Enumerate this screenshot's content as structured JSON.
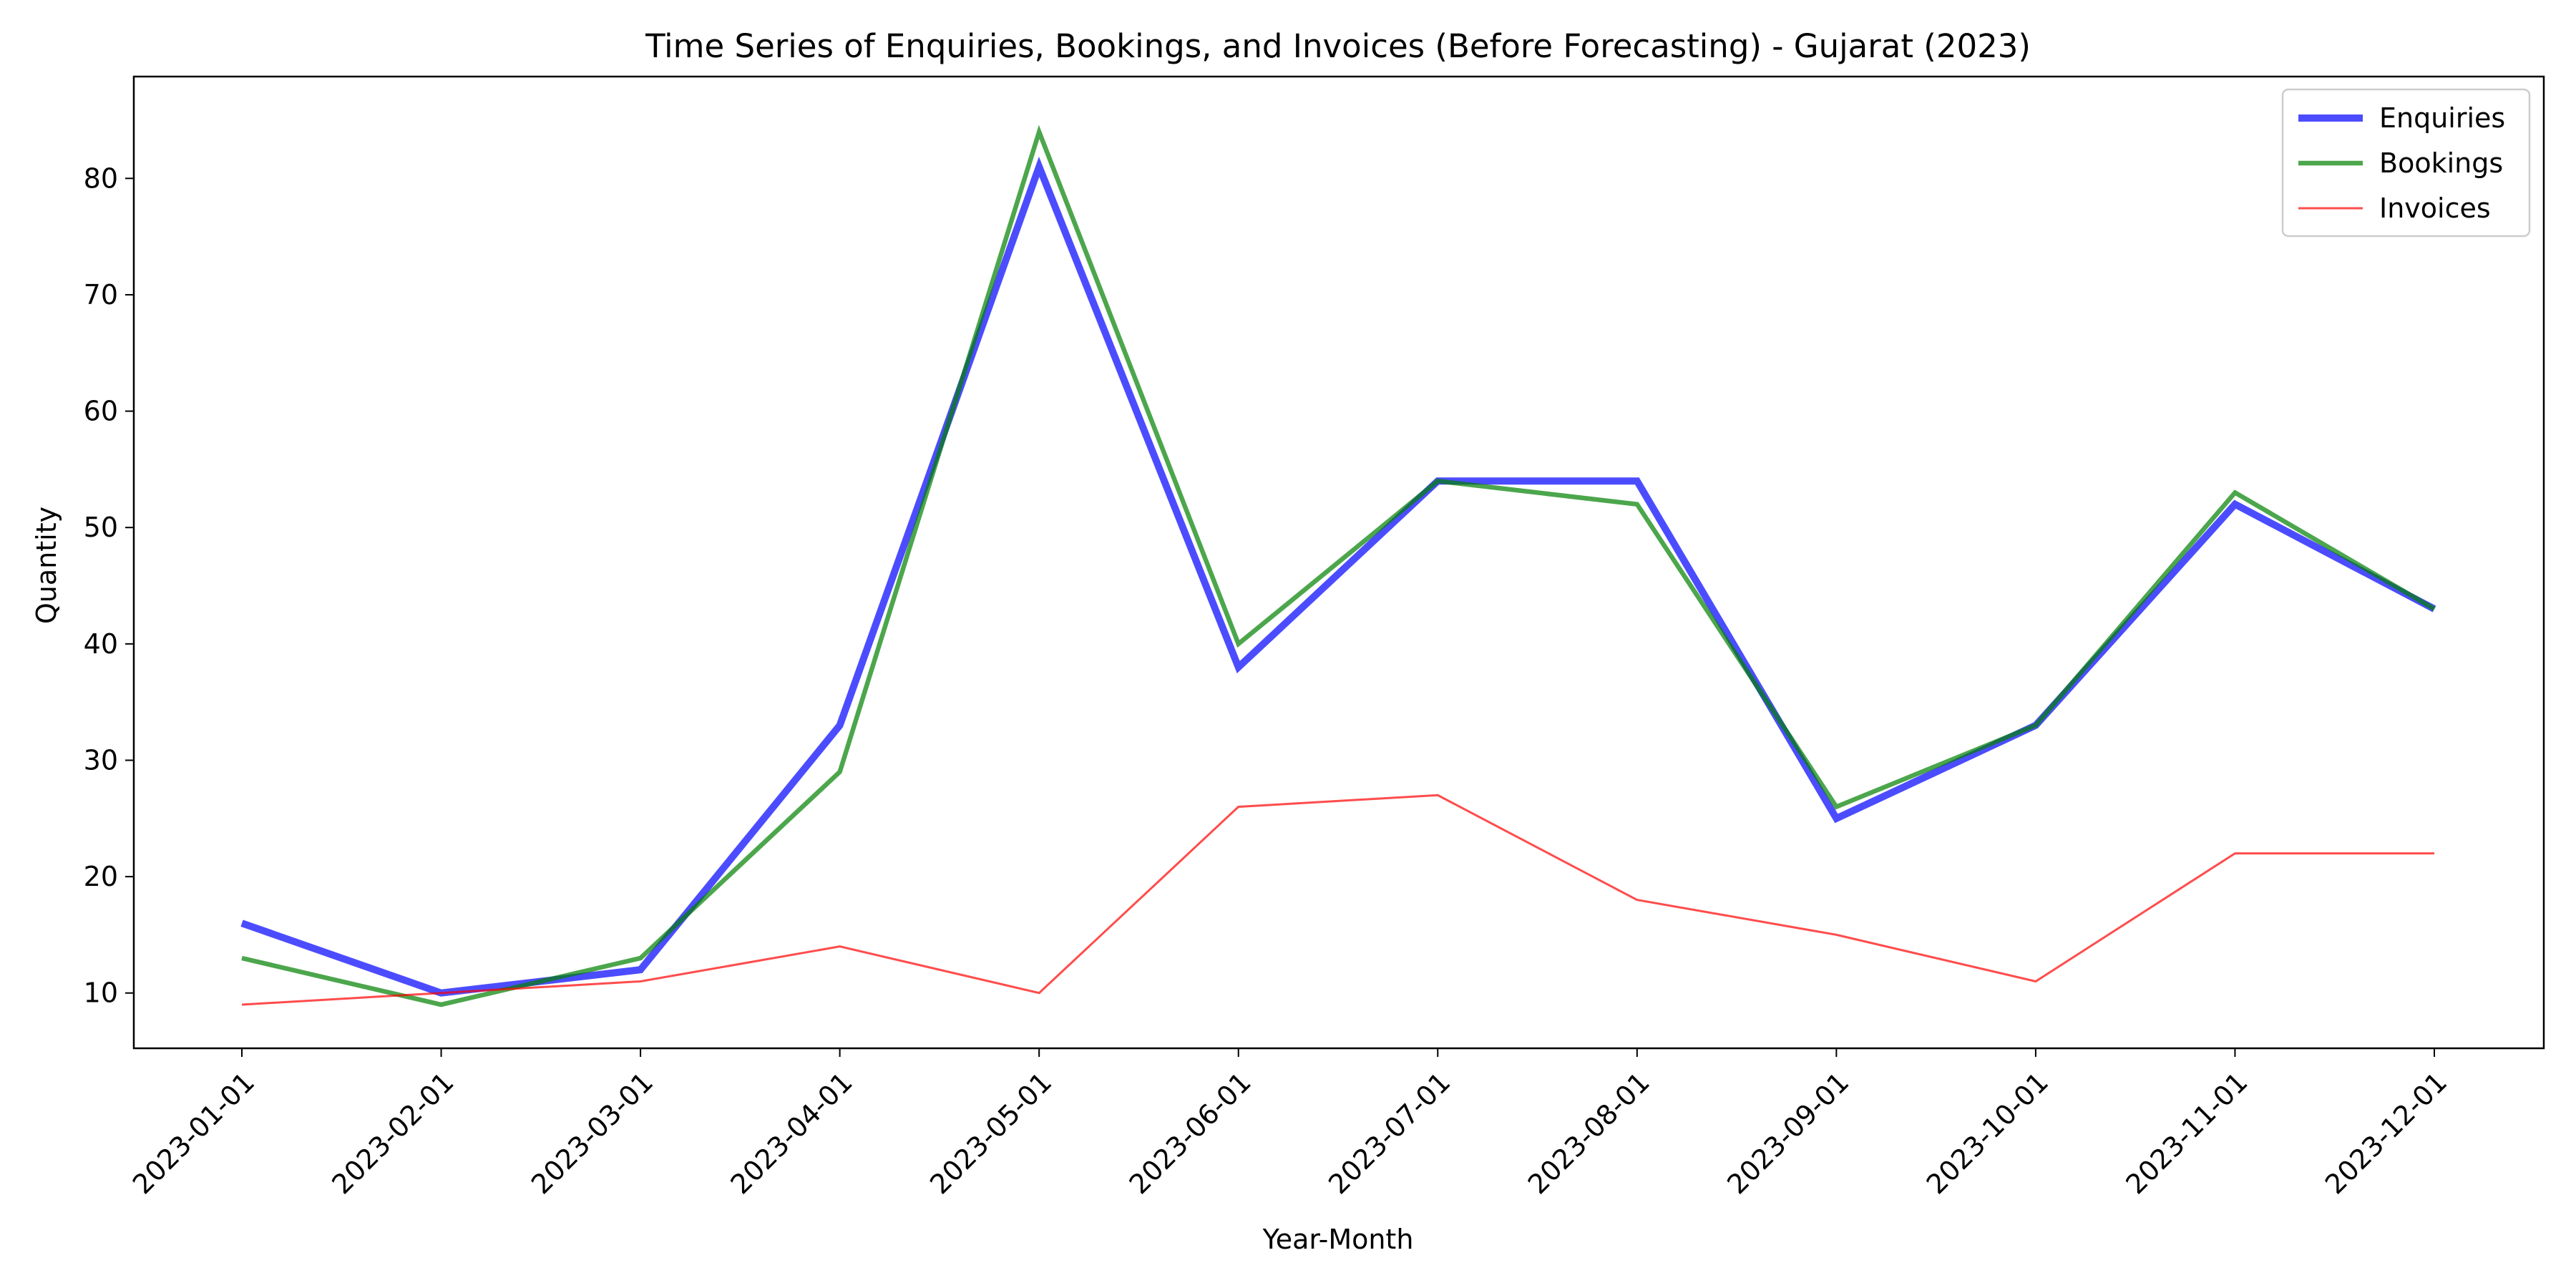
{
  "chart_data": {
    "type": "line",
    "title": "Time Series of Enquiries, Bookings, and Invoices (Before Forecasting) - Gujarat (2023)",
    "xlabel": "Year-Month",
    "ylabel": "Quantity",
    "categories": [
      "2023-01-01",
      "2023-02-01",
      "2023-03-01",
      "2023-04-01",
      "2023-05-01",
      "2023-06-01",
      "2023-07-01",
      "2023-08-01",
      "2023-09-01",
      "2023-10-01",
      "2023-11-01",
      "2023-12-01"
    ],
    "ylim": [
      5.25,
      88.75
    ],
    "yticks": [
      10,
      20,
      30,
      40,
      50,
      60,
      70,
      80
    ],
    "grid": false,
    "legend_position": "top-right",
    "series": [
      {
        "name": "Enquiries",
        "color": "#0000ff",
        "values": [
          16,
          10,
          12,
          33,
          81,
          38,
          54,
          54,
          25,
          33,
          52,
          43
        ]
      },
      {
        "name": "Bookings",
        "color": "#008000",
        "values": [
          13,
          9,
          13,
          29,
          84,
          40,
          54,
          52,
          26,
          33,
          53,
          43
        ]
      },
      {
        "name": "Invoices",
        "color": "#ff0000",
        "values": [
          9,
          10,
          11,
          14,
          10,
          26,
          27,
          18,
          15,
          11,
          22,
          22
        ]
      }
    ]
  }
}
